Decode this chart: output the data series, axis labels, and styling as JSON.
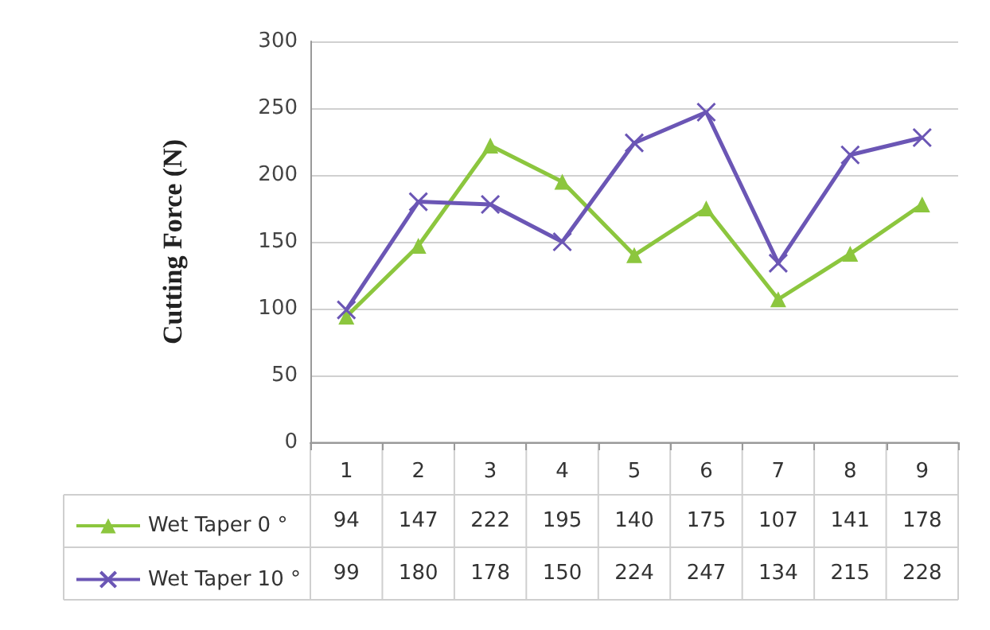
{
  "chart_data": {
    "type": "line",
    "ylabel": "Cutting Force (N)",
    "categories": [
      "1",
      "2",
      "3",
      "4",
      "5",
      "6",
      "7",
      "8",
      "9"
    ],
    "series": [
      {
        "name": "Wet Taper 0 °",
        "color": "#8cc63e",
        "marker": "triangle",
        "values": [
          94,
          147,
          222,
          195,
          140,
          175,
          107,
          141,
          178
        ]
      },
      {
        "name": "Wet Taper 10 °",
        "color": "#6b56b5",
        "marker": "cross",
        "values": [
          99,
          180,
          178,
          150,
          224,
          247,
          134,
          215,
          228
        ]
      }
    ],
    "ylim": [
      0,
      300
    ],
    "yticks": [
      0,
      50,
      100,
      150,
      200,
      250,
      300
    ],
    "grid": "y",
    "legend": "bottom",
    "data_labels": true
  }
}
